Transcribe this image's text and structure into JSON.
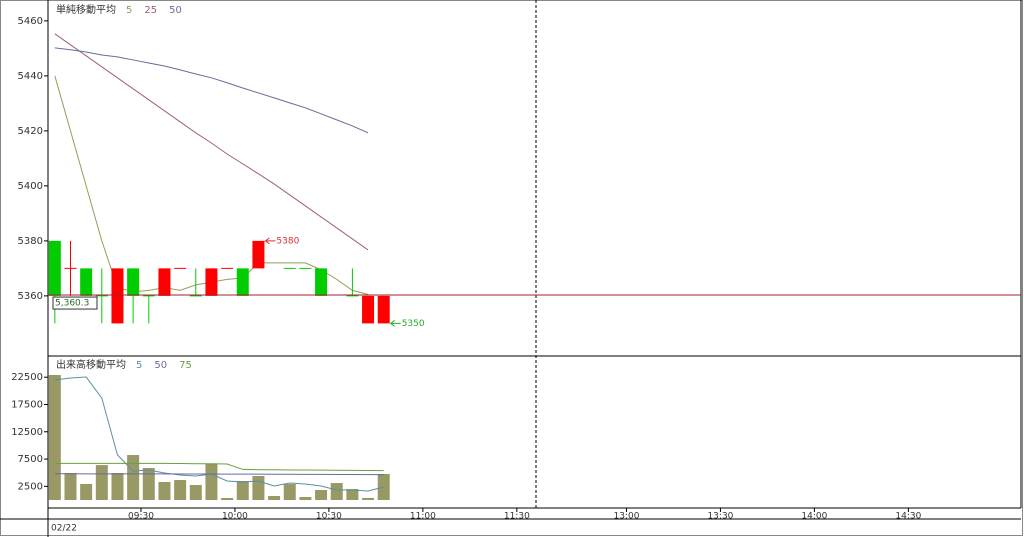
{
  "chart_data": [
    {
      "type": "candlestick",
      "legend_title": "単純移動平均",
      "open": [
        5380,
        5370,
        5370,
        5360,
        5350,
        5370,
        5360,
        5360,
        5370,
        5360,
        5360,
        5370,
        5370,
        5370,
        null,
        5370,
        5370,
        5370,
        null,
        5360,
        5350,
        5350
      ],
      "high": [
        5380,
        5380,
        5370,
        5370,
        5370,
        5370,
        5360,
        5370,
        5370,
        5370,
        5370,
        5370,
        5370,
        5380,
        null,
        5370,
        5370,
        5370,
        null,
        5370,
        5360,
        5360
      ],
      "low": [
        5350,
        5360,
        5360,
        5350,
        5350,
        5350,
        5350,
        5360,
        5370,
        5360,
        5360,
        5370,
        5360,
        5370,
        null,
        5370,
        5370,
        5360,
        null,
        5360,
        5350,
        5350
      ],
      "close": [
        5360,
        5370,
        5360,
        5360,
        5370,
        5360,
        5360,
        5370,
        5370,
        5360,
        5370,
        5370,
        5360,
        5380,
        null,
        5370,
        5370,
        5360,
        null,
        5360,
        5360,
        5360
      ],
      "candle_colors": [
        "#00cc00",
        "#ff0000",
        "#00cc00",
        "#00cc00",
        "#ff0000",
        "#00cc00",
        "#00cc00",
        "#ff0000",
        "#ff0000",
        "#00cc00",
        "#ff0000",
        "#ff0000",
        "#00cc00",
        "#ff0000",
        null,
        "#00cc00",
        "#00cc00",
        "#00cc00",
        null,
        "#00cc00",
        "#ff0000",
        "#ff0000"
      ],
      "series": [
        {
          "name": "5",
          "color": "#9a9a5a",
          "values": [
            5440,
            5420,
            5400,
            5380,
            5363,
            5361.5,
            5362,
            5363,
            5362,
            5364,
            5365,
            5366,
            5366.5,
            5372,
            5372,
            5372,
            5372,
            5369.5,
            5366,
            5362,
            5360.5,
            null
          ]
        },
        {
          "name": "25",
          "color": "#a0607a",
          "values": [
            5455.3,
            5451.3,
            5447.3,
            5443.3,
            5439.3,
            5435.3,
            5431.3,
            5427.3,
            5423.3,
            5419.3,
            5415.6,
            5411.6,
            5408,
            5404.4,
            5400.7,
            5396.7,
            5392.7,
            5388.7,
            5384.7,
            5380.7,
            5376.7,
            null
          ]
        },
        {
          "name": "50",
          "color": "#6a6a9e",
          "values": [
            5450.2,
            5449.5,
            5448.7,
            5447.6,
            5446.9,
            5445.8,
            5444.7,
            5443.6,
            5442.2,
            5440.7,
            5439.3,
            5437.5,
            5435.6,
            5433.8,
            5432,
            5430.2,
            5428.4,
            5426.2,
            5424,
            5421.8,
            5419.3,
            null
          ]
        }
      ],
      "ylim": [
        5338.5,
        5467.6
      ],
      "yticks": [
        5360,
        5380,
        5400,
        5420,
        5440,
        5460
      ],
      "xlim": [
        0,
        62
      ],
      "price_line": {
        "value": 5360.3,
        "label": "5,360.3",
        "color": "#a02030"
      },
      "annotations": [
        {
          "x": 13,
          "value": 5380,
          "color": "#e03030"
        },
        {
          "x": 21,
          "value": 5350,
          "color": "#20b020"
        }
      ]
    },
    {
      "type": "bar",
      "legend_title": "出来高移動平均",
      "color": "#999966",
      "values": [
        22900,
        4950,
        2930,
        6400,
        4950,
        8240,
        5860,
        3300,
        3660,
        2750,
        6600,
        370,
        3480,
        4400,
        730,
        2930,
        550,
        1830,
        3110,
        2010,
        370,
        4760
      ],
      "series": [
        {
          "name": "5",
          "color": "#5a8fa0",
          "values": [
            21980,
            22350,
            22530,
            18680,
            8240,
            5310,
            5500,
            4950,
            4580,
            4400,
            4760,
            3480,
            3300,
            3480,
            2560,
            3110,
            2930,
            2560,
            1830,
            1830,
            1650,
            2380
          ]
        },
        {
          "name": "50",
          "color": "#6a6a9e",
          "values": [
            4800,
            4800,
            4790,
            4780,
            4780,
            4790,
            4790,
            4780,
            4770,
            4760,
            4760,
            4750,
            4740,
            4730,
            4720,
            4710,
            4700,
            4690,
            4680,
            4670,
            4660,
            4660
          ]
        },
        {
          "name": "75",
          "color": "#6aa040",
          "values": [
            6700,
            6700,
            6700,
            6700,
            6700,
            6720,
            6720,
            6700,
            6680,
            6650,
            6650,
            6600,
            5600,
            5550,
            5550,
            5500,
            5500,
            5480,
            5450,
            5420,
            5400,
            5380
          ]
        }
      ],
      "ylim": [
        0,
        26200
      ],
      "yticks": [
        2500,
        7500,
        12500,
        17500,
        22500
      ],
      "xlim": [
        0,
        62
      ],
      "xticks": [
        {
          "value": 6,
          "label": "09:30"
        },
        {
          "value": 12,
          "label": "10:00"
        },
        {
          "value": 18,
          "label": "10:30"
        },
        {
          "value": 24,
          "label": "11:00"
        },
        {
          "value": 30,
          "label": "11:30"
        },
        {
          "value": 37,
          "label": "13:00"
        },
        {
          "value": 43,
          "label": "13:30"
        },
        {
          "value": 49,
          "label": "14:00"
        },
        {
          "value": 55,
          "label": "14:30"
        }
      ],
      "date": "02/22"
    }
  ]
}
